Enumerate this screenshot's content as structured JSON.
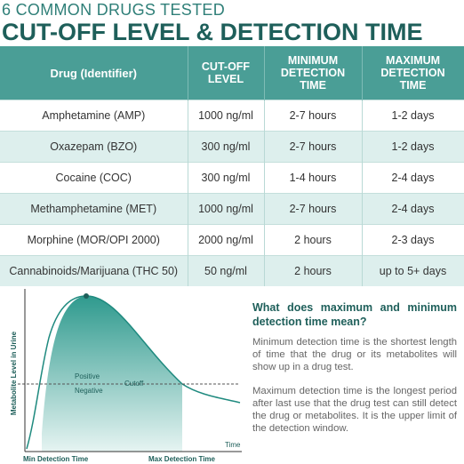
{
  "header": {
    "subtitle": "6 COMMON DRUGS TESTED",
    "title": "CUT-OFF LEVEL & DETECTION TIME"
  },
  "table": {
    "columns": [
      "Drug (Identifier)",
      "CUT-OFF LEVEL",
      "MINIMUM DETECTION TIME",
      "MAXIMUM DETECTION TIME"
    ],
    "rows": [
      [
        "Amphetamine (AMP)",
        "1000 ng/ml",
        "2-7 hours",
        "1-2 days"
      ],
      [
        "Oxazepam (BZO)",
        "300 ng/ml",
        "2-7 hours",
        "1-2 days"
      ],
      [
        "Cocaine (COC)",
        "300 ng/ml",
        "1-4 hours",
        "2-4 days"
      ],
      [
        "Methamphetamine (MET)",
        "1000 ng/ml",
        "2-7 hours",
        "2-4 days"
      ],
      [
        "Morphine (MOR/OPI 2000)",
        "2000 ng/ml",
        "2 hours",
        "2-3 days"
      ],
      [
        "Cannabinoids/Marijuana (THC 50)",
        "50 ng/ml",
        "2 hours",
        "up to 5+ days"
      ]
    ]
  },
  "diagram": {
    "y_label": "Metabolite Level in Urine",
    "x_label": "Time",
    "positive": "Positive",
    "negative": "Negative",
    "cutoff": "Cutoff",
    "min_label": "Min Detection Time",
    "max_label": "Max Detection Time"
  },
  "explanation": {
    "question": "What does maximum and minimum detection time mean?",
    "paragraphs": [
      "Minimum detection time is the shortest length of time that the drug or its metabolites will show up in a drug test.",
      "Maximum detection time is the longest period after last use that the drug test can still detect the drug or metabolites. It is the upper limit of the detection window."
    ]
  }
}
